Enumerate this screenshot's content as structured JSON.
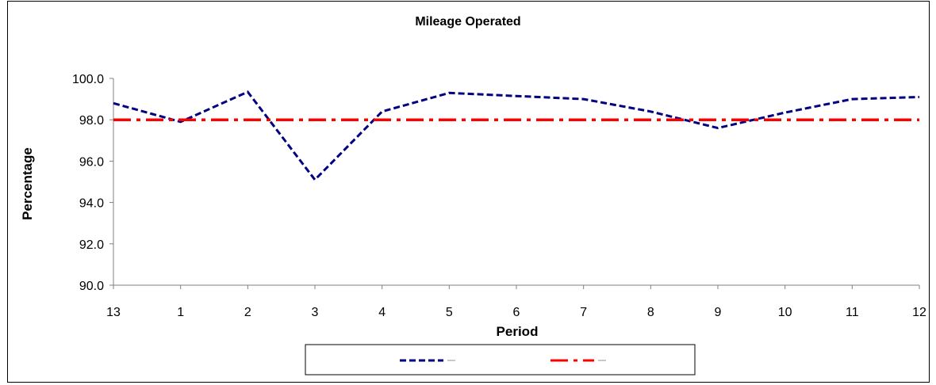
{
  "chart_data": {
    "type": "line",
    "title": "Mileage Operated",
    "xlabel": "Period",
    "ylabel": "Percentage",
    "categories": [
      "13",
      "1",
      "2",
      "3",
      "4",
      "5",
      "6",
      "7",
      "8",
      "9",
      "10",
      "11",
      "12"
    ],
    "ylim": [
      90.0,
      100.0
    ],
    "yticks": [
      "90.0",
      "92.0",
      "94.0",
      "96.0",
      "98.0",
      "100.0"
    ],
    "grid": false,
    "legend_position": "bottom",
    "series": [
      {
        "values": [
          98.8,
          97.9,
          99.35,
          95.1,
          98.4,
          99.3,
          99.15,
          99.0,
          98.4,
          97.6,
          98.35,
          99.0,
          99.1
        ],
        "color": "#000080",
        "style": "dashed"
      },
      {
        "values": [
          98.0,
          98.0,
          98.0,
          98.0,
          98.0,
          98.0,
          98.0,
          98.0,
          98.0,
          98.0,
          98.0,
          98.0,
          98.0
        ],
        "color": "#ff0000",
        "style": "dash-dot"
      }
    ]
  }
}
